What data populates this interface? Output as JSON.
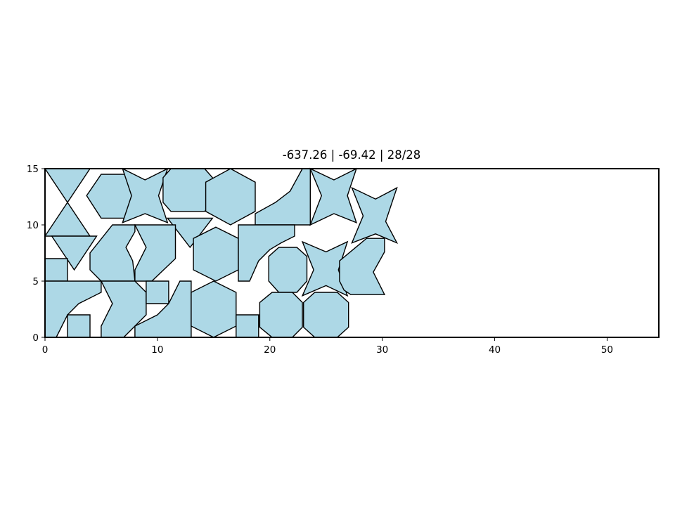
{
  "chart_data": {
    "type": "polygon-packing",
    "title": "-637.26 | -69.42 | 28/28",
    "xlim": [
      0,
      54.6
    ],
    "ylim": [
      0,
      15
    ],
    "xticks": [
      0,
      10,
      20,
      30,
      40,
      50
    ],
    "yticks": [
      0,
      5,
      10,
      15
    ],
    "bin": {
      "width": 54.6,
      "height": 15
    },
    "fill_color": "#add8e6",
    "edge_color": "#000000",
    "pieces": [
      {
        "name": "triangle-1",
        "points": [
          [
            0,
            15
          ],
          [
            4,
            15
          ],
          [
            2,
            12
          ]
        ]
      },
      {
        "name": "triangle-2",
        "points": [
          [
            2,
            12
          ],
          [
            4,
            9
          ],
          [
            0,
            9
          ]
        ]
      },
      {
        "name": "triangle-3",
        "points": [
          [
            0.6,
            9
          ],
          [
            4.6,
            9
          ],
          [
            2.6,
            6
          ]
        ]
      },
      {
        "name": "hexagon-1",
        "points": [
          [
            5,
            14.5
          ],
          [
            7.5,
            14.5
          ],
          [
            8.8,
            12.6
          ],
          [
            7.5,
            10.6
          ],
          [
            5,
            10.6
          ],
          [
            3.7,
            12.6
          ]
        ]
      },
      {
        "name": "star-1",
        "points": [
          [
            6.9,
            15
          ],
          [
            8.9,
            14
          ],
          [
            10.9,
            15
          ],
          [
            10.1,
            12.6
          ],
          [
            10.9,
            10.2
          ],
          [
            8.9,
            11
          ],
          [
            6.9,
            10.2
          ],
          [
            7.7,
            12.6
          ]
        ]
      },
      {
        "name": "octagon-1",
        "points": [
          [
            11.2,
            15
          ],
          [
            14.2,
            15
          ],
          [
            14.9,
            14.2
          ],
          [
            14.9,
            12
          ],
          [
            14.2,
            11.2
          ],
          [
            11.2,
            11.2
          ],
          [
            10.5,
            12
          ],
          [
            10.5,
            14.2
          ]
        ]
      },
      {
        "name": "triangle-4",
        "points": [
          [
            10.9,
            10.6
          ],
          [
            14.9,
            10.6
          ],
          [
            12.9,
            8
          ]
        ]
      },
      {
        "name": "hexagon-2",
        "points": [
          [
            16.5,
            15
          ],
          [
            18.7,
            13.8
          ],
          [
            18.7,
            11.2
          ],
          [
            16.5,
            10
          ],
          [
            14.3,
            11.2
          ],
          [
            14.3,
            13.8
          ]
        ]
      },
      {
        "name": "quarter-piece-1",
        "points": [
          [
            18.7,
            10
          ],
          [
            23.6,
            10
          ],
          [
            23.6,
            15
          ],
          [
            22.9,
            15
          ],
          [
            21.8,
            13
          ],
          [
            20.5,
            12
          ],
          [
            18.7,
            11
          ]
        ]
      },
      {
        "name": "star-2",
        "points": [
          [
            23.6,
            15
          ],
          [
            25.7,
            14
          ],
          [
            27.7,
            15
          ],
          [
            26.9,
            12.6
          ],
          [
            27.7,
            10.2
          ],
          [
            25.7,
            11
          ],
          [
            23.6,
            10
          ],
          [
            24.6,
            12.6
          ]
        ]
      },
      {
        "name": "star-3",
        "points": [
          [
            27.3,
            13.3
          ],
          [
            29.4,
            12.3
          ],
          [
            31.3,
            13.3
          ],
          [
            30.3,
            10.3
          ],
          [
            31.3,
            8.4
          ],
          [
            29.4,
            9.2
          ],
          [
            27.3,
            8.4
          ],
          [
            28.3,
            10.8
          ]
        ]
      },
      {
        "name": "chevron-1",
        "points": [
          [
            6,
            10
          ],
          [
            8,
            10
          ],
          [
            8,
            9.4
          ],
          [
            7.2,
            8
          ],
          [
            7.8,
            6.8
          ],
          [
            8,
            5
          ],
          [
            5,
            5
          ],
          [
            4,
            6
          ],
          [
            4,
            7.5
          ]
        ]
      },
      {
        "name": "chevron-2",
        "points": [
          [
            8,
            10
          ],
          [
            11.6,
            10
          ],
          [
            11.6,
            7
          ],
          [
            9.5,
            5
          ],
          [
            8,
            5
          ],
          [
            8,
            6
          ],
          [
            9,
            8
          ]
        ]
      },
      {
        "name": "hexagon-3",
        "points": [
          [
            15.2,
            9.8
          ],
          [
            17.2,
            8.8
          ],
          [
            17.2,
            6
          ],
          [
            15.2,
            5
          ],
          [
            13.2,
            6
          ],
          [
            13.2,
            8.8
          ]
        ]
      },
      {
        "name": "quarter-piece-2",
        "points": [
          [
            17.2,
            10
          ],
          [
            22.2,
            10
          ],
          [
            22.2,
            9
          ],
          [
            21,
            8.4
          ],
          [
            20,
            7.8
          ],
          [
            19,
            6.8
          ],
          [
            18.2,
            5
          ],
          [
            17.2,
            5
          ]
        ]
      },
      {
        "name": "octagon-2",
        "points": [
          [
            20.8,
            8
          ],
          [
            22.4,
            8
          ],
          [
            23.3,
            7.2
          ],
          [
            23.3,
            5
          ],
          [
            22.4,
            4
          ],
          [
            20.8,
            4
          ],
          [
            19.9,
            5
          ],
          [
            19.9,
            7.2
          ]
        ]
      },
      {
        "name": "star-4",
        "points": [
          [
            22.9,
            8.5
          ],
          [
            25,
            7.6
          ],
          [
            26.9,
            8.5
          ],
          [
            26.1,
            6
          ],
          [
            26.9,
            3.7
          ],
          [
            25,
            4.6
          ],
          [
            22.9,
            3.7
          ],
          [
            23.9,
            6
          ]
        ]
      },
      {
        "name": "chevron-3",
        "points": [
          [
            28.6,
            8.8
          ],
          [
            30.2,
            8.8
          ],
          [
            30.2,
            7.6
          ],
          [
            29.2,
            5.8
          ],
          [
            30.2,
            3.8
          ],
          [
            27.2,
            3.8
          ],
          [
            26.6,
            4.2
          ],
          [
            26.2,
            5
          ],
          [
            26.2,
            6.8
          ]
        ]
      },
      {
        "name": "square-1",
        "points": [
          [
            0,
            7
          ],
          [
            2,
            7
          ],
          [
            2,
            5
          ],
          [
            0,
            5
          ]
        ]
      },
      {
        "name": "quarter-piece-3",
        "points": [
          [
            0,
            5
          ],
          [
            5,
            5
          ],
          [
            5,
            4
          ],
          [
            3,
            3
          ],
          [
            2,
            2
          ],
          [
            1,
            0
          ],
          [
            0,
            0
          ]
        ]
      },
      {
        "name": "square-2",
        "points": [
          [
            2,
            2
          ],
          [
            4,
            2
          ],
          [
            4,
            0
          ],
          [
            2,
            0
          ]
        ]
      },
      {
        "name": "chevron-4",
        "points": [
          [
            5,
            5
          ],
          [
            8,
            5
          ],
          [
            9,
            4
          ],
          [
            9,
            2
          ],
          [
            8,
            1
          ],
          [
            7,
            0
          ],
          [
            5,
            0
          ],
          [
            5,
            1
          ],
          [
            6,
            3
          ]
        ]
      },
      {
        "name": "square-3",
        "points": [
          [
            9,
            5
          ],
          [
            11,
            5
          ],
          [
            11,
            3
          ],
          [
            9,
            3
          ]
        ]
      },
      {
        "name": "quarter-piece-4",
        "points": [
          [
            12,
            5
          ],
          [
            13,
            5
          ],
          [
            13,
            0
          ],
          [
            8,
            0
          ],
          [
            8,
            1
          ],
          [
            10,
            2
          ],
          [
            11,
            3
          ]
        ]
      },
      {
        "name": "hexagon-4",
        "points": [
          [
            15,
            5
          ],
          [
            17,
            4
          ],
          [
            17,
            1
          ],
          [
            15,
            0
          ],
          [
            13,
            1
          ],
          [
            13,
            4
          ]
        ]
      },
      {
        "name": "square-4",
        "points": [
          [
            17,
            2
          ],
          [
            19,
            2
          ],
          [
            19,
            0
          ],
          [
            17,
            0
          ]
        ]
      },
      {
        "name": "octagon-3",
        "points": [
          [
            20.2,
            4
          ],
          [
            22,
            4
          ],
          [
            22.9,
            3.1
          ],
          [
            22.9,
            0.9
          ],
          [
            22,
            0
          ],
          [
            20.2,
            0
          ],
          [
            19.1,
            0.9
          ],
          [
            19.1,
            3.1
          ]
        ]
      },
      {
        "name": "octagon-4",
        "points": [
          [
            24,
            4
          ],
          [
            26,
            4
          ],
          [
            27,
            3.1
          ],
          [
            27,
            0.9
          ],
          [
            26,
            0
          ],
          [
            24,
            0
          ],
          [
            23,
            0.9
          ],
          [
            23,
            3.1
          ]
        ]
      }
    ]
  }
}
